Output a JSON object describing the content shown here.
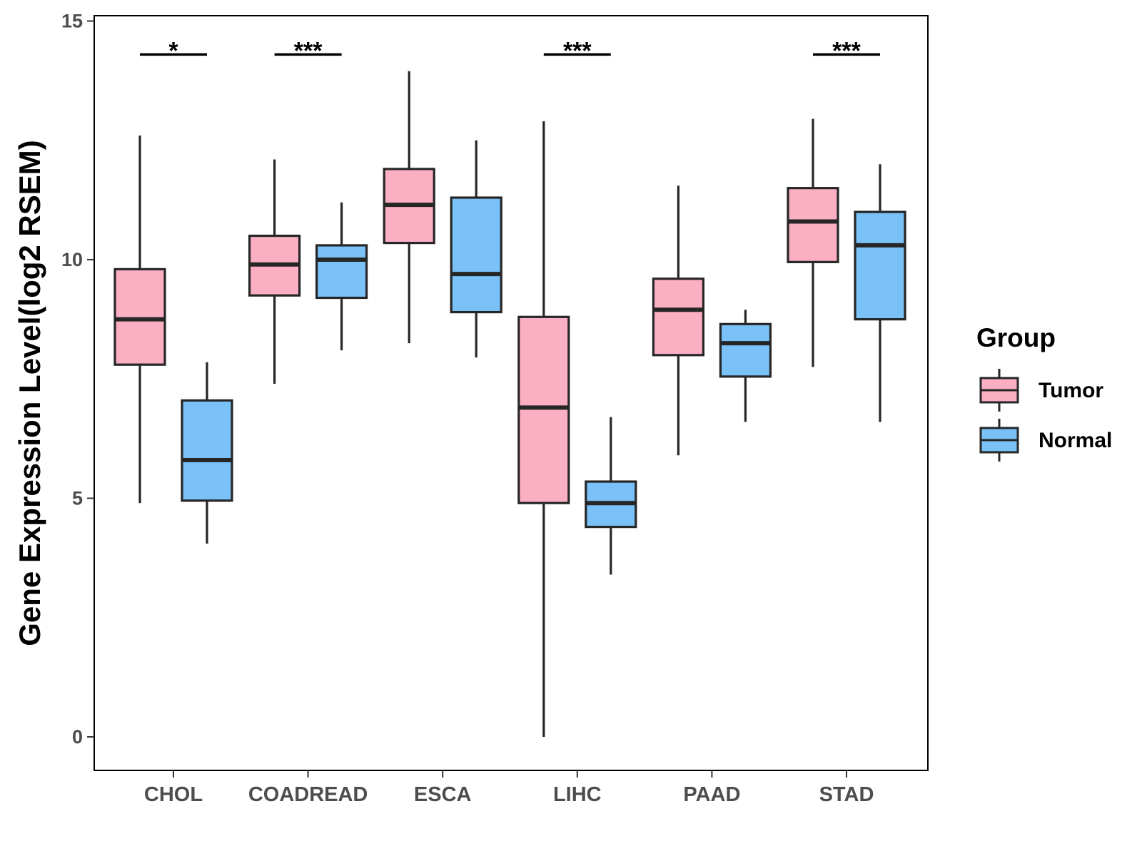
{
  "chart_data": {
    "type": "box",
    "title": "",
    "xlabel": "",
    "ylabel": "Gene Expression Level(log2 RSEM)",
    "ylim": [
      -0.7,
      15.1
    ],
    "yticks": [
      0,
      5,
      10,
      15
    ],
    "categories": [
      "CHOL",
      "COADREAD",
      "ESCA",
      "LIHC",
      "PAAD",
      "STAD"
    ],
    "legend": {
      "title": "Group",
      "position": "right",
      "entries": [
        "Tumor",
        "Normal"
      ]
    },
    "series": [
      {
        "name": "Tumor",
        "color": "#fbafc3",
        "boxes": [
          {
            "category": "CHOL",
            "min": 4.9,
            "q1": 7.8,
            "median": 8.75,
            "q3": 9.8,
            "max": 12.6
          },
          {
            "category": "COADREAD",
            "min": 7.4,
            "q1": 9.25,
            "median": 9.9,
            "q3": 10.5,
            "max": 12.1
          },
          {
            "category": "ESCA",
            "min": 8.25,
            "q1": 10.35,
            "median": 11.15,
            "q3": 11.9,
            "max": 13.95
          },
          {
            "category": "LIHC",
            "min": 0.0,
            "q1": 4.9,
            "median": 6.9,
            "q3": 8.8,
            "max": 12.9
          },
          {
            "category": "PAAD",
            "min": 5.9,
            "q1": 8.0,
            "median": 8.95,
            "q3": 9.6,
            "max": 11.55
          },
          {
            "category": "STAD",
            "min": 7.75,
            "q1": 9.95,
            "median": 10.8,
            "q3": 11.5,
            "max": 12.95
          }
        ]
      },
      {
        "name": "Normal",
        "color": "#79c1f7",
        "boxes": [
          {
            "category": "CHOL",
            "min": 4.05,
            "q1": 4.95,
            "median": 5.8,
            "q3": 7.05,
            "max": 7.85
          },
          {
            "category": "COADREAD",
            "min": 8.1,
            "q1": 9.2,
            "median": 10.0,
            "q3": 10.3,
            "max": 11.2
          },
          {
            "category": "ESCA",
            "min": 7.95,
            "q1": 8.9,
            "median": 9.7,
            "q3": 11.3,
            "max": 12.5
          },
          {
            "category": "LIHC",
            "min": 3.4,
            "q1": 4.4,
            "median": 4.9,
            "q3": 5.35,
            "max": 6.7
          },
          {
            "category": "PAAD",
            "min": 6.6,
            "q1": 7.55,
            "median": 8.25,
            "q3": 8.65,
            "max": 8.95
          },
          {
            "category": "STAD",
            "min": 6.6,
            "q1": 8.75,
            "median": 10.3,
            "q3": 11.0,
            "max": 12.0
          }
        ]
      }
    ],
    "significance": [
      {
        "category": "CHOL",
        "label": "*",
        "y": 14.3
      },
      {
        "category": "COADREAD",
        "label": "***",
        "y": 14.3
      },
      {
        "category": "LIHC",
        "label": "***",
        "y": 14.3
      },
      {
        "category": "STAD",
        "label": "***",
        "y": 14.3
      }
    ]
  }
}
